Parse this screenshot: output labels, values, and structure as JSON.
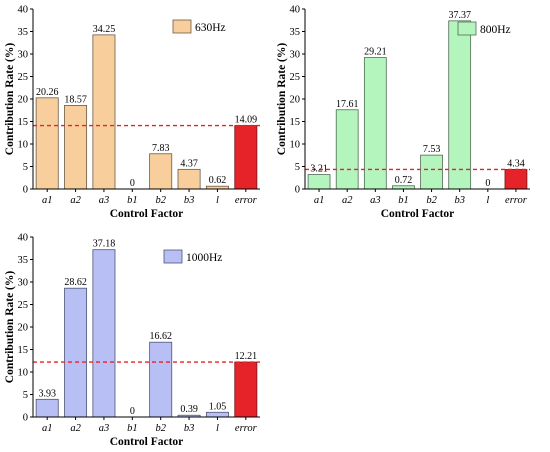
{
  "chart_data": [
    {
      "type": "bar",
      "categories": [
        "a1",
        "a2",
        "a3",
        "b1",
        "b2",
        "b3",
        "l",
        "error"
      ],
      "values": [
        20.26,
        18.57,
        34.25,
        0,
        7.83,
        4.37,
        0.62,
        14.09
      ],
      "data_labels": [
        "20.26",
        "18.57",
        "34.25",
        "0",
        "7.83",
        "4.37",
        "0.62",
        "14.09"
      ],
      "legend": "630Hz",
      "xlabel": "Control Factor",
      "ylabel": "Contribution Rate (%)",
      "ylim": [
        0,
        40
      ],
      "yticks": [
        "0",
        "5",
        "10",
        "15",
        "20",
        "25",
        "30",
        "35",
        "40"
      ],
      "reference_line": 14.09,
      "colors": {
        "bar": "#f8cf9c",
        "bar_edge": "#6b5a45",
        "error": "#e52329",
        "line": "#e52329"
      }
    },
    {
      "type": "bar",
      "categories": [
        "a1",
        "a2",
        "a3",
        "b1",
        "b2",
        "b3",
        "l",
        "error"
      ],
      "values": [
        3.21,
        17.61,
        29.21,
        0.72,
        7.53,
        37.37,
        0,
        4.34
      ],
      "data_labels": [
        "3.21",
        "17.61",
        "29.21",
        "0.72",
        "7.53",
        "37.37",
        "0",
        "4.34"
      ],
      "legend": "800Hz",
      "xlabel": "Control Factor",
      "ylabel": "Contribution Rate (%)",
      "ylim": [
        0,
        40
      ],
      "yticks": [
        "0",
        "5",
        "10",
        "15",
        "20",
        "25",
        "30",
        "35",
        "40"
      ],
      "reference_line": 4.34,
      "colors": {
        "bar": "#b3f5bc",
        "bar_edge": "#4f6b52",
        "error": "#e52329",
        "line": "#e52329"
      }
    },
    {
      "type": "bar",
      "categories": [
        "a1",
        "a2",
        "a3",
        "b1",
        "b2",
        "b3",
        "l",
        "error"
      ],
      "values": [
        3.93,
        28.62,
        37.18,
        0,
        16.62,
        0.39,
        1.05,
        12.21
      ],
      "data_labels": [
        "3.93",
        "28.62",
        "37.18",
        "0",
        "16.62",
        "0.39",
        "1.05",
        "12.21"
      ],
      "legend": "1000Hz",
      "xlabel": "Control Factor",
      "ylabel": "Contribution Rate (%)",
      "ylim": [
        0,
        40
      ],
      "yticks": [
        "0",
        "5",
        "10",
        "15",
        "20",
        "25",
        "30",
        "35",
        "40"
      ],
      "reference_line": 12.21,
      "colors": {
        "bar": "#b7bff5",
        "bar_edge": "#4f5573",
        "error": "#e52329",
        "line": "#e52329"
      }
    }
  ]
}
